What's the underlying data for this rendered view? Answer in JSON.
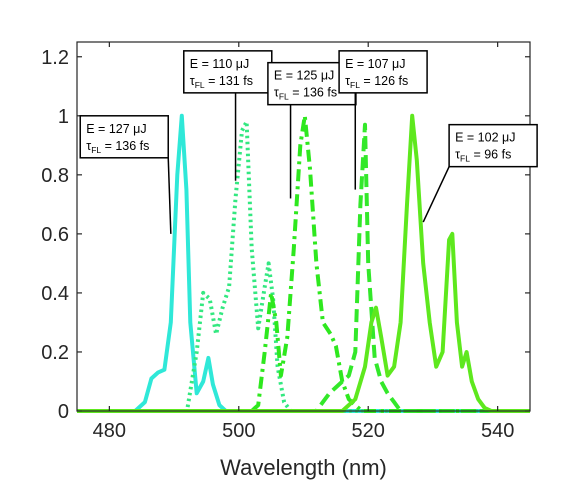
{
  "chart_data": {
    "type": "line",
    "xlabel": "Wavelength (nm)",
    "ylabel": "",
    "xlim": [
      475,
      545
    ],
    "ylim": [
      0,
      1.25
    ],
    "x_ticks": [
      480,
      500,
      520,
      540
    ],
    "x_tick_labels": [
      "480",
      "500",
      "520",
      "540"
    ],
    "y_ticks": [
      0,
      0.2,
      0.4,
      0.6,
      0.8,
      1,
      1.2
    ],
    "y_tick_labels": [
      "0",
      "0.2",
      "0.4",
      "0.6",
      "0.8",
      "1",
      "1.2"
    ],
    "grid": false,
    "series": [
      {
        "color": "#2fe8d8",
        "dash": "solid",
        "annotation": {
          "energy": "E = 127 μJ",
          "tau": "τ",
          "tau_sub": "FL",
          "tau_val": " = 136 fs",
          "anchor": [
            489.5,
            0.6
          ],
          "box": [
            475.5,
            1.0
          ]
        },
        "points": [
          [
            475,
            0
          ],
          [
            484,
            0
          ],
          [
            485.5,
            0.03
          ],
          [
            486.5,
            0.11
          ],
          [
            487.5,
            0.13
          ],
          [
            488.5,
            0.14
          ],
          [
            489.5,
            0.3
          ],
          [
            490.5,
            0.8
          ],
          [
            491.2,
            1.0
          ],
          [
            491.9,
            0.75
          ],
          [
            492.5,
            0.3
          ],
          [
            493.5,
            0.06
          ],
          [
            494.5,
            0.1
          ],
          [
            495.3,
            0.18
          ],
          [
            496,
            0.09
          ],
          [
            497,
            0.02
          ],
          [
            498,
            0
          ],
          [
            545,
            0
          ]
        ]
      },
      {
        "color": "#33e880",
        "dash": "dotted",
        "annotation": {
          "energy": "E = 110 μJ",
          "tau": "τ",
          "tau_sub": "FL",
          "tau_val": " = 131 fs",
          "anchor": [
            499.5,
            0.78
          ],
          "box": [
            491.5,
            1.22
          ]
        },
        "points": [
          [
            475,
            0
          ],
          [
            492,
            0
          ],
          [
            493.5,
            0.2
          ],
          [
            494.5,
            0.4
          ],
          [
            495.5,
            0.38
          ],
          [
            496.5,
            0.26
          ],
          [
            497.5,
            0.35
          ],
          [
            498.5,
            0.42
          ],
          [
            499.5,
            0.72
          ],
          [
            500.5,
            0.95
          ],
          [
            501.2,
            0.98
          ],
          [
            502,
            0.55
          ],
          [
            503,
            0.28
          ],
          [
            504,
            0.42
          ],
          [
            504.6,
            0.5
          ],
          [
            505.3,
            0.38
          ],
          [
            506,
            0.15
          ],
          [
            507,
            0.03
          ],
          [
            508,
            0
          ],
          [
            545,
            0
          ]
        ]
      },
      {
        "color": "#2ee81e",
        "dash": "dashdot",
        "annotation": {
          "energy": "E = 125 μJ",
          "tau": "τ",
          "tau_sub": "FL",
          "tau_val": " = 136 fs",
          "anchor": [
            508,
            0.72
          ],
          "box": [
            504.5,
            1.18
          ]
        },
        "points": [
          [
            475,
            0
          ],
          [
            502,
            0
          ],
          [
            503,
            0.02
          ],
          [
            504,
            0.2
          ],
          [
            505,
            0.4
          ],
          [
            505.8,
            0.3
          ],
          [
            506.5,
            0.12
          ],
          [
            507.5,
            0.25
          ],
          [
            508.5,
            0.55
          ],
          [
            509.5,
            0.9
          ],
          [
            510.2,
            1.0
          ],
          [
            511,
            0.82
          ],
          [
            512,
            0.5
          ],
          [
            513,
            0.3
          ],
          [
            514.2,
            0.26
          ],
          [
            515,
            0.22
          ],
          [
            516,
            0.1
          ],
          [
            517,
            0.04
          ],
          [
            518,
            0.02
          ],
          [
            519,
            0
          ],
          [
            545,
            0
          ]
        ]
      },
      {
        "color": "#33e82a",
        "dash": "dashed",
        "annotation": {
          "energy": "E = 107 μJ",
          "tau": "τ",
          "tau_sub": "FL",
          "tau_val": " = 126 fs",
          "anchor": [
            518,
            0.75
          ],
          "box": [
            515.5,
            1.22
          ]
        },
        "points": [
          [
            475,
            0
          ],
          [
            512,
            0
          ],
          [
            513,
            0.03
          ],
          [
            514,
            0.06
          ],
          [
            515,
            0.08
          ],
          [
            516,
            0.1
          ],
          [
            517,
            0.12
          ],
          [
            518,
            0.2
          ],
          [
            518.8,
            0.7
          ],
          [
            519.5,
            0.97
          ],
          [
            520,
            0.5
          ],
          [
            521,
            0.18
          ],
          [
            522,
            0.1
          ],
          [
            523,
            0.06
          ],
          [
            524,
            0.03
          ],
          [
            525,
            0
          ],
          [
            545,
            0
          ]
        ]
      },
      {
        "color": "#5ee81e",
        "dash": "solid",
        "annotation": {
          "energy": "E = 102 μJ",
          "tau": "τ",
          "tau_sub": "FL",
          "tau_val": " = 96 fs",
          "anchor": [
            528.5,
            0.64
          ],
          "box": [
            532.5,
            0.97
          ]
        },
        "points": [
          [
            475,
            0
          ],
          [
            516,
            0
          ],
          [
            518,
            0.04
          ],
          [
            519.5,
            0.15
          ],
          [
            520.5,
            0.3
          ],
          [
            521.2,
            0.35
          ],
          [
            522,
            0.25
          ],
          [
            523,
            0.12
          ],
          [
            524,
            0.15
          ],
          [
            525,
            0.3
          ],
          [
            526,
            0.7
          ],
          [
            526.8,
            1.0
          ],
          [
            527.5,
            0.85
          ],
          [
            528.5,
            0.5
          ],
          [
            529.5,
            0.3
          ],
          [
            530.5,
            0.15
          ],
          [
            531.5,
            0.2
          ],
          [
            532.5,
            0.58
          ],
          [
            533,
            0.6
          ],
          [
            533.7,
            0.3
          ],
          [
            534.5,
            0.15
          ],
          [
            535.2,
            0.2
          ],
          [
            536,
            0.1
          ],
          [
            537,
            0.04
          ],
          [
            538,
            0.01
          ],
          [
            539,
            0
          ],
          [
            545,
            0
          ]
        ]
      }
    ]
  }
}
